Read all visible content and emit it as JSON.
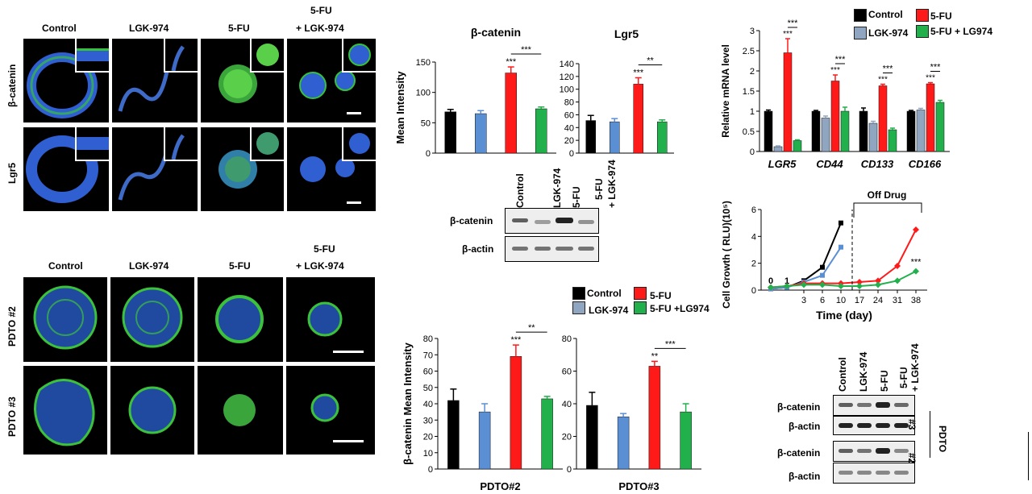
{
  "panelA": {
    "columns": [
      "Control",
      "LGK-974",
      "5-FU",
      "5-FU",
      "+ LGK-974"
    ],
    "rows": [
      "β-catenin",
      "Lgr5"
    ]
  },
  "panelB": {
    "columns": [
      "Control",
      "LGK-974",
      "5-FU",
      "5-FU",
      "+ LGK-974"
    ],
    "rows": [
      "PDTO #2",
      "PDTO #3"
    ]
  },
  "panelC": {
    "legend": [
      "Control",
      "5-FU",
      "LGK-974",
      "5-FU + LG974"
    ],
    "colors": {
      "control": "#000000",
      "lgk": "#5b8fd4",
      "fu": "#ff1a1a",
      "combo": "#22b04c",
      "lgk_gray": "#8fa5c0"
    }
  },
  "blotTop": {
    "lanes": [
      "Control",
      "LGK-974",
      "5-FU",
      "5-FU",
      "+ LGK-974"
    ],
    "rows": [
      "β-catenin",
      "β-actin"
    ]
  },
  "blotBottom": {
    "lanes": [
      "Control",
      "LGK-974",
      "5-FU",
      "5-FU",
      "+ LGK-974"
    ],
    "rows": [
      "β-catenin",
      "β-actin",
      "β-catenin",
      "β-actin"
    ],
    "side": [
      "#3",
      "#2",
      "PDTO"
    ]
  },
  "growth": {
    "annotation": "Off Drug",
    "zero": "0",
    "one": "1"
  },
  "chart_data": [
    {
      "type": "bar",
      "title": "β-catenin",
      "ylabel": "Mean Intensity",
      "categories": [
        "Control",
        "LGK-974",
        "5-FU",
        "5-FU + LGK-974"
      ],
      "values": [
        68,
        65,
        132,
        73
      ],
      "errors": [
        4,
        5,
        10,
        3
      ],
      "ylim": [
        0,
        150
      ],
      "yticks": [
        "0",
        "50",
        "100",
        "150"
      ],
      "sig": [
        "***",
        "***"
      ]
    },
    {
      "type": "bar",
      "title": "Lgr5",
      "categories": [
        "Control",
        "LGK-974",
        "5-FU",
        "5-FU + LGK-974"
      ],
      "values": [
        51,
        49,
        108,
        49
      ],
      "errors": [
        8,
        5,
        10,
        3
      ],
      "ylim": [
        0,
        140
      ],
      "yticks": [
        "0",
        "20",
        "40",
        "60",
        "80",
        "100",
        "120",
        "140"
      ],
      "sig": [
        "***",
        "**"
      ]
    },
    {
      "type": "bar",
      "ylabel": "Relative mRNA level",
      "categories": [
        "LGR5",
        "CD44",
        "CD133",
        "CD166"
      ],
      "series": [
        {
          "name": "Control",
          "values": [
            1.0,
            1.0,
            1.0,
            1.0
          ],
          "errors": [
            0.03,
            0.02,
            0.08,
            0.02
          ]
        },
        {
          "name": "LGK-974",
          "values": [
            0.12,
            0.83,
            0.7,
            1.03
          ],
          "errors": [
            0.02,
            0.05,
            0.05,
            0.04
          ]
        },
        {
          "name": "5-FU",
          "values": [
            2.45,
            1.75,
            1.63,
            1.68
          ],
          "errors": [
            0.35,
            0.15,
            0.04,
            0.03
          ]
        },
        {
          "name": "5-FU+LG974",
          "values": [
            0.27,
            1.0,
            0.54,
            1.22
          ],
          "errors": [
            0.02,
            0.1,
            0.04,
            0.05
          ]
        }
      ],
      "ylim": [
        0,
        3
      ],
      "yticks": [
        "0",
        "0.5",
        "1",
        "1.5",
        "2",
        "2.5",
        "3"
      ],
      "sig": [
        "***",
        "***",
        "***",
        "***",
        "***",
        "***",
        "***",
        "***"
      ]
    },
    {
      "type": "line",
      "xlabel": "Time (day)",
      "ylabel": "Cell Growth ( RLU)(10⁵)",
      "x": [
        "0",
        "1",
        "3",
        "6",
        "10",
        "17",
        "24",
        "31",
        "38"
      ],
      "xticks": [
        "3",
        "6",
        "10",
        "17",
        "24",
        "31",
        "38"
      ],
      "series": [
        {
          "name": "Control",
          "values": [
            0.1,
            0.2,
            0.7,
            1.7,
            5.0,
            null,
            null,
            null,
            null
          ]
        },
        {
          "name": "LGK-974",
          "values": [
            0.1,
            0.2,
            0.6,
            1.1,
            3.2,
            null,
            null,
            null,
            null
          ]
        },
        {
          "name": "5-FU",
          "values": [
            0.2,
            0.3,
            0.5,
            0.5,
            0.5,
            0.6,
            0.7,
            1.8,
            4.5
          ]
        },
        {
          "name": "5-FU+LG974",
          "values": [
            0.2,
            0.3,
            0.4,
            0.4,
            0.3,
            0.3,
            0.4,
            0.7,
            1.4
          ]
        }
      ],
      "ylim": [
        0,
        6
      ],
      "yticks": [
        "0",
        "2",
        "4",
        "6"
      ],
      "sig": [
        "***"
      ]
    },
    {
      "type": "bar",
      "xlabel": "PDTO#2",
      "ylabel": "β-catenin Mean Intensity",
      "categories": [
        "Control",
        "LGK-974",
        "5-FU",
        "5-FU +LG974"
      ],
      "values": [
        42,
        35,
        69,
        43
      ],
      "errors": [
        7,
        5,
        7,
        1.5
      ],
      "ylim": [
        0,
        80
      ],
      "yticks": [
        "0",
        "10",
        "20",
        "30",
        "40",
        "50",
        "60",
        "70",
        "80"
      ],
      "sig": [
        "***",
        "**"
      ]
    },
    {
      "type": "bar",
      "xlabel": "PDTO#3",
      "categories": [
        "Control",
        "LGK-974",
        "5-FU",
        "5-FU +LG974"
      ],
      "values": [
        39,
        32,
        63,
        35
      ],
      "errors": [
        8,
        2,
        3,
        5
      ],
      "ylim": [
        0,
        80
      ],
      "yticks": [
        "0",
        "20",
        "40",
        "60",
        "80"
      ],
      "sig": [
        "**",
        "***"
      ]
    }
  ]
}
